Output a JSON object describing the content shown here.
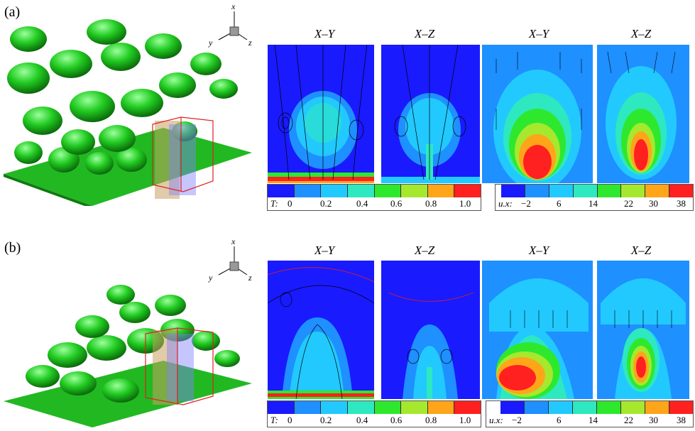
{
  "panels": [
    {
      "label": "(a)",
      "titles": [
        "X–Y",
        "X–Z",
        "X–Y",
        "X–Z"
      ],
      "legend_T": {
        "name": "T:",
        "ticks": [
          "0",
          "0.2",
          "0.4",
          "0.6",
          "0.8",
          "1.0"
        ]
      },
      "legend_u": {
        "name": "u.x:",
        "ticks": [
          "−2",
          "6",
          "14",
          "22",
          "30",
          "38"
        ]
      }
    },
    {
      "label": "(b)",
      "titles": [
        "X–Y",
        "X–Z",
        "X–Y",
        "X–Z"
      ],
      "legend_T": {
        "name": "T:",
        "ticks": [
          "0",
          "0.2",
          "0.4",
          "0.6",
          "0.8",
          "1.0"
        ]
      },
      "legend_u": {
        "name": "u.x:",
        "ticks": [
          "−2",
          "6",
          "14",
          "22",
          "30",
          "38"
        ]
      }
    }
  ],
  "axes_triad": {
    "x": "x",
    "y": "y",
    "z": "z"
  },
  "colors": {
    "contour_levels": [
      "#1a1aff",
      "#1e90ff",
      "#22c9ff",
      "#2ee8c0",
      "#2ee82e",
      "#a6e82e",
      "#ffa51a",
      "#ff2020"
    ],
    "isosurface": "#22cc22"
  }
}
